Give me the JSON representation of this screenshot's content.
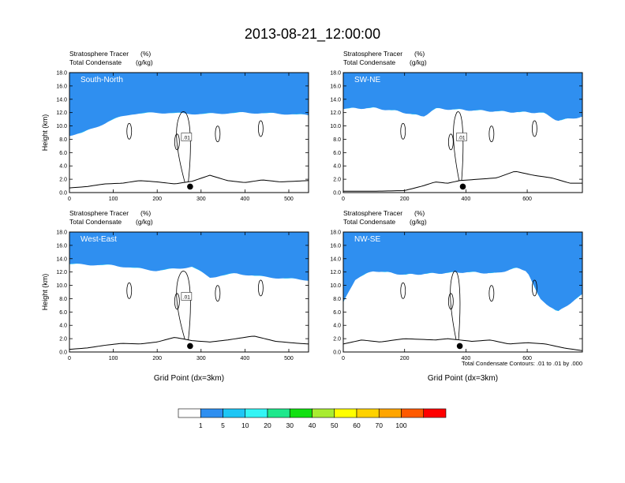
{
  "title": "2013-08-21_12:00:00",
  "footnote": "Total Condensate Contours: .01 to .01 by .000",
  "colors": {
    "levels": [
      "#ffffff",
      "#2f8ff0",
      "#1ec6f5",
      "#33f5f5",
      "#1ee88c",
      "#11e011",
      "#a8ec31",
      "#ffff00",
      "#ffd200",
      "#ffa500",
      "#ff5a00",
      "#ff0000"
    ],
    "tick_labels": [
      "1",
      "5",
      "10",
      "20",
      "30",
      "40",
      "50",
      "60",
      "70",
      "100"
    ]
  },
  "chart_data": [
    {
      "type": "contour",
      "label": "South-North",
      "var1": "Stratosphere Tracer",
      "var1_units": "(%)",
      "var2": "Total Condensate",
      "var2_units": "(g/kg)",
      "ylabel": "Height (km)",
      "xlabel": "",
      "xlim": [
        0,
        545
      ],
      "ylim": [
        0,
        18
      ],
      "xticks": [
        "0",
        "100",
        "200",
        "300",
        "400",
        "500"
      ],
      "yticks": [
        "0.0",
        "2.0",
        "4.0",
        "6.0",
        "8.0",
        "10.0",
        "12.0",
        "14.0",
        "16.0",
        "18.0"
      ],
      "marker_x": 275,
      "contour_label": ".01",
      "tracer_base": [
        [
          0,
          8.6
        ],
        [
          30,
          9.0
        ],
        [
          60,
          9.8
        ],
        [
          100,
          11.0
        ],
        [
          140,
          11.8
        ],
        [
          200,
          12.0
        ],
        [
          300,
          11.8
        ],
        [
          400,
          12.0
        ],
        [
          500,
          11.8
        ],
        [
          545,
          11.6
        ]
      ],
      "terrain": [
        [
          0,
          0.7
        ],
        [
          40,
          0.9
        ],
        [
          80,
          1.3
        ],
        [
          120,
          1.4
        ],
        [
          160,
          1.8
        ],
        [
          200,
          1.6
        ],
        [
          240,
          1.3
        ],
        [
          280,
          1.7
        ],
        [
          320,
          2.6
        ],
        [
          360,
          1.8
        ],
        [
          400,
          1.5
        ],
        [
          440,
          1.9
        ],
        [
          480,
          1.6
        ],
        [
          545,
          1.8
        ]
      ]
    },
    {
      "type": "contour",
      "label": "SW-NE",
      "var1": "Stratosphere Tracer",
      "var1_units": "(%)",
      "var2": "Total Condensate",
      "var2_units": "(g/kg)",
      "ylabel": "",
      "xlabel": "",
      "xlim": [
        0,
        780
      ],
      "ylim": [
        0,
        18
      ],
      "xticks": [
        "0",
        "200",
        "400",
        "600"
      ],
      "yticks": [
        "0.0",
        "2.0",
        "4.0",
        "6.0",
        "8.0",
        "10.0",
        "12.0",
        "14.0",
        "16.0",
        "18.0"
      ],
      "marker_x": 390,
      "contour_label": ".01",
      "tracer_base": [
        [
          0,
          12.6
        ],
        [
          100,
          12.7
        ],
        [
          180,
          12.2
        ],
        [
          260,
          11.4
        ],
        [
          300,
          12.6
        ],
        [
          400,
          12.4
        ],
        [
          550,
          12.1
        ],
        [
          650,
          12.0
        ],
        [
          700,
          10.8
        ],
        [
          780,
          11.4
        ]
      ],
      "terrain": [
        [
          0,
          0.2
        ],
        [
          100,
          0.2
        ],
        [
          200,
          0.3
        ],
        [
          260,
          1.0
        ],
        [
          300,
          1.6
        ],
        [
          340,
          1.4
        ],
        [
          380,
          1.8
        ],
        [
          440,
          2.0
        ],
        [
          500,
          2.2
        ],
        [
          560,
          3.2
        ],
        [
          620,
          2.6
        ],
        [
          680,
          2.2
        ],
        [
          740,
          1.4
        ],
        [
          780,
          1.4
        ]
      ]
    },
    {
      "type": "contour",
      "label": "West-East",
      "var1": "Stratosphere Tracer",
      "var1_units": "(%)",
      "var2": "Total Condensate",
      "var2_units": "(g/kg)",
      "ylabel": "Height (km)",
      "xlabel": "Grid Point (dx=3km)",
      "xlim": [
        0,
        545
      ],
      "ylim": [
        0,
        18
      ],
      "xticks": [
        "0",
        "100",
        "200",
        "300",
        "400",
        "500"
      ],
      "yticks": [
        "0.0",
        "2.0",
        "4.0",
        "6.0",
        "8.0",
        "10.0",
        "12.0",
        "14.0",
        "16.0",
        "18.0"
      ],
      "marker_x": 275,
      "contour_label": ".01",
      "tracer_base": [
        [
          0,
          13.2
        ],
        [
          100,
          13.0
        ],
        [
          200,
          12.2
        ],
        [
          280,
          12.8
        ],
        [
          320,
          11.2
        ],
        [
          380,
          11.8
        ],
        [
          440,
          11.3
        ],
        [
          500,
          11.0
        ],
        [
          545,
          10.8
        ]
      ],
      "terrain": [
        [
          0,
          0.4
        ],
        [
          40,
          0.6
        ],
        [
          80,
          1.0
        ],
        [
          120,
          1.3
        ],
        [
          160,
          1.2
        ],
        [
          200,
          1.5
        ],
        [
          240,
          2.2
        ],
        [
          280,
          1.7
        ],
        [
          320,
          1.5
        ],
        [
          360,
          1.8
        ],
        [
          420,
          2.4
        ],
        [
          470,
          1.6
        ],
        [
          520,
          1.3
        ],
        [
          545,
          1.2
        ]
      ]
    },
    {
      "type": "contour",
      "label": "NW-SE",
      "var1": "Stratosphere Tracer",
      "var1_units": "(%)",
      "var2": "Total Condensate",
      "var2_units": "(g/kg)",
      "ylabel": "",
      "xlabel": "Grid Point (dx=3km)",
      "xlim": [
        0,
        780
      ],
      "ylim": [
        0,
        18
      ],
      "xticks": [
        "0",
        "200",
        "400",
        "600"
      ],
      "yticks": [
        "0.0",
        "2.0",
        "4.0",
        "6.0",
        "8.0",
        "10.0",
        "12.0",
        "14.0",
        "16.0",
        "18.0"
      ],
      "marker_x": 380,
      "contour_label": "",
      "tracer_base": [
        [
          0,
          7.4
        ],
        [
          40,
          11.0
        ],
        [
          100,
          12.2
        ],
        [
          200,
          11.6
        ],
        [
          300,
          11.8
        ],
        [
          400,
          12.0
        ],
        [
          500,
          11.8
        ],
        [
          560,
          12.6
        ],
        [
          600,
          12.2
        ],
        [
          640,
          8.0
        ],
        [
          700,
          6.0
        ],
        [
          760,
          8.0
        ],
        [
          780,
          8.6
        ]
      ],
      "terrain": [
        [
          0,
          1.2
        ],
        [
          60,
          1.8
        ],
        [
          120,
          1.5
        ],
        [
          200,
          2.0
        ],
        [
          300,
          1.8
        ],
        [
          340,
          2.0
        ],
        [
          420,
          1.6
        ],
        [
          480,
          1.8
        ],
        [
          540,
          1.2
        ],
        [
          600,
          1.4
        ],
        [
          660,
          1.2
        ],
        [
          720,
          0.6
        ],
        [
          780,
          0.2
        ]
      ]
    }
  ]
}
